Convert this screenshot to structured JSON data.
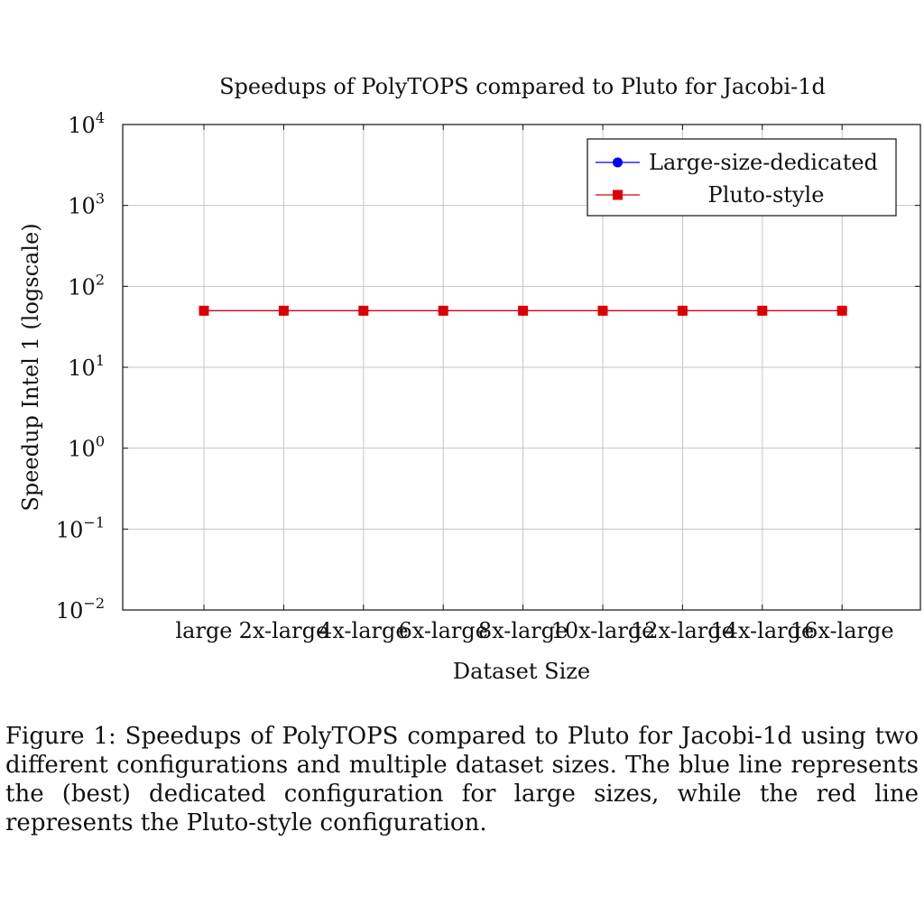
{
  "chart_data": {
    "type": "line",
    "title": "Speedups of PolyTOPS compared to Pluto for Jacobi-1d",
    "xlabel": "Dataset Size",
    "ylabel": "Speedup Intel 1 (logscale)",
    "yscale": "log",
    "ylim": [
      0.01,
      10000
    ],
    "yticks": [
      {
        "base": "10",
        "exp": "4",
        "value": 10000
      },
      {
        "base": "10",
        "exp": "3",
        "value": 1000
      },
      {
        "base": "10",
        "exp": "2",
        "value": 100
      },
      {
        "base": "10",
        "exp": "1",
        "value": 10
      },
      {
        "base": "10",
        "exp": "0",
        "value": 1
      },
      {
        "base": "10",
        "exp": "−1",
        "value": 0.1
      },
      {
        "base": "10",
        "exp": "−2",
        "value": 0.01
      }
    ],
    "categories": [
      "large",
      "2x-large",
      "4x-large",
      "6x-large",
      "8x-large",
      "10x-large",
      "12x-large",
      "14x-large",
      "16x-large"
    ],
    "grid": true,
    "legend_position": "top-right",
    "series": [
      {
        "name": "Large-size-dedicated",
        "color": "#0000ee",
        "marker": "circle",
        "values": [
          50,
          50,
          50,
          50,
          50,
          50,
          50,
          50,
          50
        ]
      },
      {
        "name": "Pluto-style",
        "color": "#dd0000",
        "marker": "square",
        "values": [
          50,
          50,
          50,
          50,
          50,
          50,
          50,
          50,
          50
        ]
      }
    ]
  },
  "caption": "Figure 1: Speedups of PolyTOPS compared to Pluto for Jacobi-1d using two different configurations and multiple dataset sizes. The blue line represents the (best) dedicated configuration for large sizes, while the red line represents the Pluto-style configuration."
}
